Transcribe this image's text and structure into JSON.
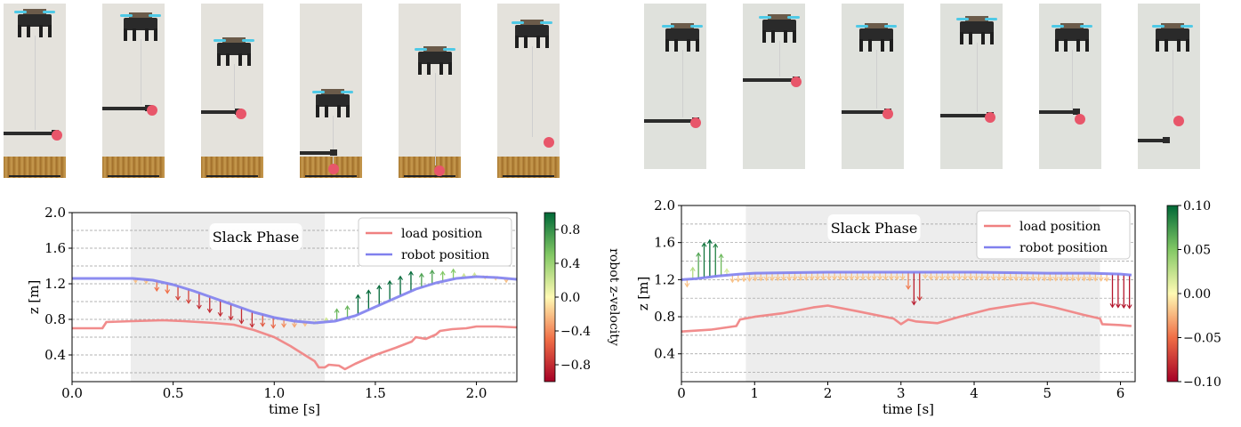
{
  "chart_data": [
    {
      "type": "line",
      "title": "",
      "xlabel": "time [s]",
      "ylabel": "z [m]",
      "xlim": [
        0.0,
        2.2
      ],
      "ylim": [
        0.1,
        2.0
      ],
      "xticks": [
        "0.0",
        "0.5",
        "1.0",
        "1.5",
        "2.0"
      ],
      "yticks": [
        "0.4",
        "0.8",
        "1.2",
        "1.6",
        "2.0"
      ],
      "grid": "horizontal dashed",
      "legend_placement": "top-right",
      "legend": [
        "load position",
        "robot position"
      ],
      "annotation": "Slack Phase",
      "slack_phase": [
        0.29,
        1.25
      ],
      "series": [
        {
          "name": "load position",
          "color": "#f08080",
          "x": [
            0.0,
            0.15,
            0.17,
            0.3,
            0.45,
            0.55,
            0.7,
            0.8,
            0.9,
            1.0,
            1.08,
            1.15,
            1.2,
            1.22,
            1.25,
            1.27,
            1.32,
            1.35,
            1.4,
            1.5,
            1.6,
            1.68,
            1.7,
            1.75,
            1.8,
            1.82,
            1.88,
            1.95,
            2.0,
            2.1,
            2.2
          ],
          "y": [
            0.7,
            0.7,
            0.77,
            0.78,
            0.79,
            0.78,
            0.76,
            0.74,
            0.68,
            0.6,
            0.5,
            0.4,
            0.33,
            0.26,
            0.26,
            0.29,
            0.28,
            0.24,
            0.3,
            0.4,
            0.48,
            0.55,
            0.6,
            0.58,
            0.63,
            0.67,
            0.69,
            0.7,
            0.72,
            0.72,
            0.71
          ]
        },
        {
          "name": "robot position",
          "color": "#8080ee",
          "x": [
            0.0,
            0.1,
            0.2,
            0.3,
            0.4,
            0.5,
            0.6,
            0.7,
            0.8,
            0.9,
            1.0,
            1.1,
            1.2,
            1.3,
            1.4,
            1.5,
            1.6,
            1.7,
            1.8,
            1.9,
            2.0,
            2.1,
            2.2
          ],
          "y": [
            1.26,
            1.26,
            1.26,
            1.26,
            1.24,
            1.19,
            1.12,
            1.04,
            0.96,
            0.88,
            0.82,
            0.78,
            0.76,
            0.78,
            0.84,
            0.94,
            1.04,
            1.14,
            1.21,
            1.26,
            1.28,
            1.27,
            1.25
          ]
        }
      ],
      "colorbar": {
        "label": "robot z-velocity",
        "range": [
          -1.0,
          1.0
        ],
        "ticks": [
          "0.8",
          "0.4",
          "0.0",
          "−0.4",
          "−0.8"
        ]
      }
    },
    {
      "type": "line",
      "title": "",
      "xlabel": "time [s]",
      "ylabel": "z [m]",
      "xlim": [
        0,
        6.2
      ],
      "ylim": [
        0.1,
        2.0
      ],
      "xticks": [
        "0",
        "1",
        "2",
        "3",
        "4",
        "5",
        "6"
      ],
      "yticks": [
        "0.4",
        "0.8",
        "1.2",
        "1.6",
        "2.0"
      ],
      "grid": "horizontal dashed",
      "legend_placement": "top-right",
      "legend": [
        "load position",
        "robot position"
      ],
      "annotation": "Slack Phase",
      "slack_phase": [
        0.88,
        5.72
      ],
      "series": [
        {
          "name": "load position",
          "color": "#f08080",
          "x": [
            0,
            0.4,
            0.75,
            0.8,
            1.0,
            1.4,
            1.8,
            2.0,
            2.4,
            2.9,
            3.0,
            3.1,
            3.2,
            3.5,
            3.8,
            4.2,
            4.6,
            4.8,
            5.1,
            5.5,
            5.72,
            5.75,
            6.0,
            6.15
          ],
          "y": [
            0.64,
            0.66,
            0.7,
            0.77,
            0.8,
            0.84,
            0.9,
            0.92,
            0.86,
            0.78,
            0.72,
            0.77,
            0.75,
            0.73,
            0.8,
            0.88,
            0.93,
            0.95,
            0.9,
            0.82,
            0.78,
            0.72,
            0.71,
            0.7
          ]
        },
        {
          "name": "robot position",
          "color": "#8080ee",
          "x": [
            0,
            0.2,
            0.5,
            0.8,
            1.0,
            2.0,
            3.0,
            4.0,
            5.0,
            5.6,
            6.0,
            6.15
          ],
          "y": [
            1.2,
            1.21,
            1.24,
            1.26,
            1.27,
            1.28,
            1.28,
            1.28,
            1.27,
            1.27,
            1.26,
            1.25
          ]
        }
      ],
      "colorbar": {
        "label": "",
        "range": [
          -0.1,
          0.1
        ],
        "ticks": [
          "0.10",
          "0.05",
          "0.00",
          "−0.05",
          "−0.10"
        ]
      }
    }
  ]
}
